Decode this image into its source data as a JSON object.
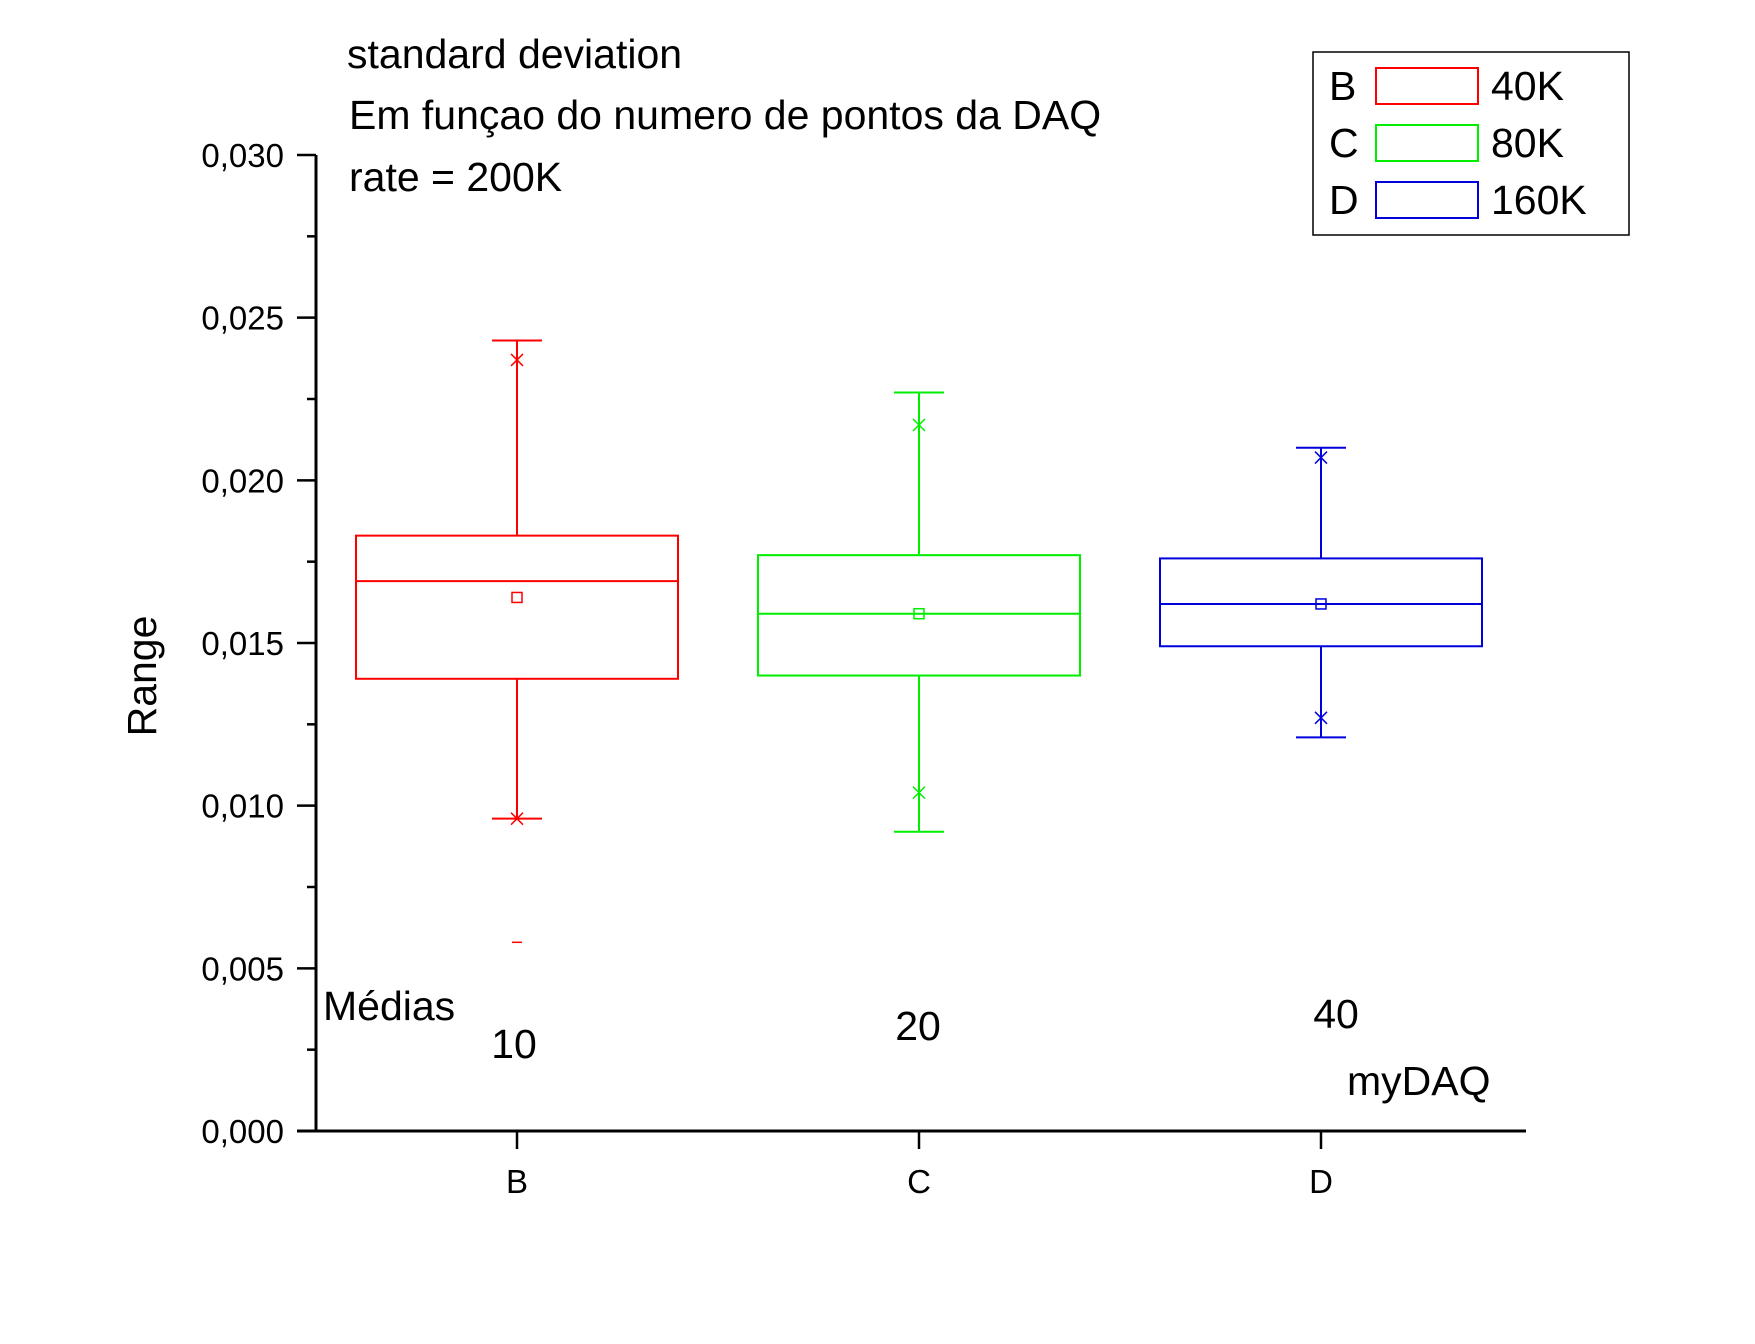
{
  "chart_data": {
    "type": "box",
    "annotations": {
      "line1": "standard deviation",
      "line2": "Em funçao do numero de pontos da DAQ",
      "line3": "rate = 200K",
      "medias_label": "Médias",
      "device_label": "myDAQ"
    },
    "ylabel": "Range",
    "xlabel": "",
    "ylim": [
      0,
      0.03
    ],
    "y_ticks": [
      "0,000",
      "0,005",
      "0,010",
      "0,015",
      "0,020",
      "0,025",
      "0,030"
    ],
    "grid": false,
    "legend_position": "top-right",
    "categories": [
      "B",
      "C",
      "D"
    ],
    "series": [
      {
        "category": "B",
        "legend_letter": "B",
        "legend_label": "40K",
        "color": "#ff0000",
        "media_count": "10",
        "whisker_low": 0.0096,
        "q1": 0.0139,
        "median": 0.0169,
        "q3": 0.0183,
        "whisker_high": 0.0243,
        "mean": 0.0164,
        "x_low": 0.0096,
        "x_high": 0.0237,
        "outlier_min": 0.0058
      },
      {
        "category": "C",
        "legend_letter": "C",
        "legend_label": "80K",
        "color": "#00ee00",
        "media_count": "20",
        "whisker_low": 0.0092,
        "q1": 0.014,
        "median": 0.0159,
        "q3": 0.0177,
        "whisker_high": 0.0227,
        "mean": 0.0159,
        "x_low": 0.0104,
        "x_high": 0.0217
      },
      {
        "category": "D",
        "legend_letter": "D",
        "legend_label": "160K",
        "color": "#0000dd",
        "media_count": "40",
        "whisker_low": 0.0121,
        "q1": 0.0149,
        "median": 0.0162,
        "q3": 0.0176,
        "whisker_high": 0.021,
        "mean": 0.0162,
        "x_low": 0.0127,
        "x_high": 0.0207
      }
    ]
  }
}
